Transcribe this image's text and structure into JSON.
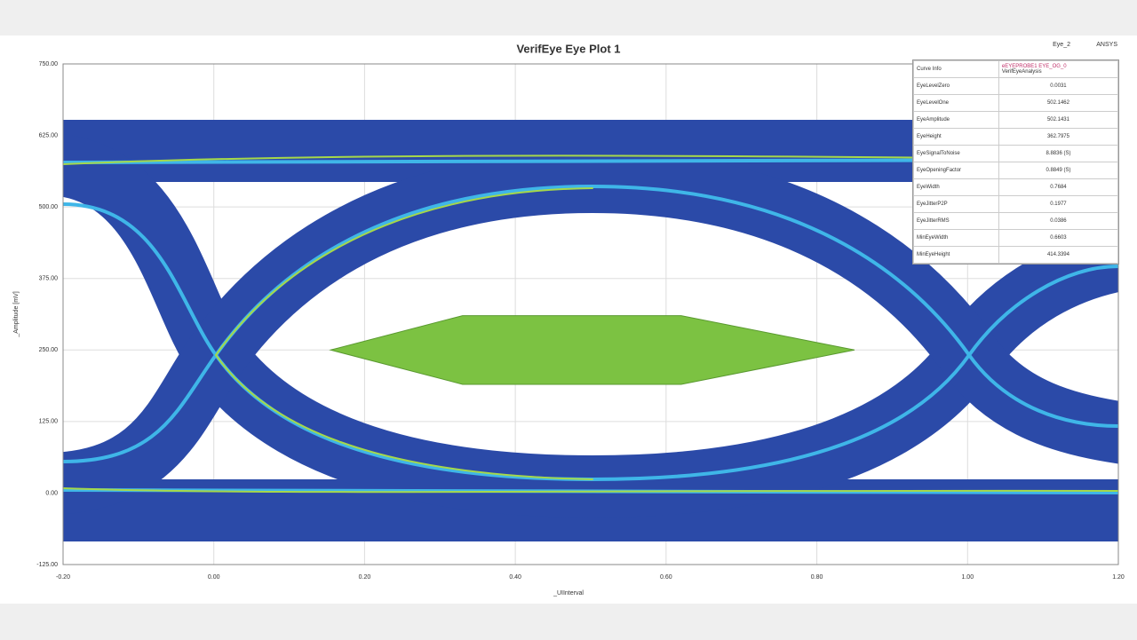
{
  "chart_data": {
    "type": "eye",
    "title": "VerifEye Eye Plot 1",
    "xlabel": "_UIInterval",
    "ylabel": "_Amplitude [mV]",
    "xlim": [
      -0.2,
      1.2
    ],
    "ylim": [
      -125,
      750
    ],
    "xticks": [
      {
        "value": -0.2,
        "label": "-0.20"
      },
      {
        "value": 0,
        "label": "0.00"
      },
      {
        "value": 0.2,
        "label": "0.20"
      },
      {
        "value": 0.4,
        "label": "0.40"
      },
      {
        "value": 0.6,
        "label": "0.60"
      },
      {
        "value": 0.8,
        "label": "0.80"
      },
      {
        "value": 1,
        "label": "1.00"
      },
      {
        "value": 1.2,
        "label": "1.20"
      }
    ],
    "yticks": [
      {
        "value": -125,
        "label": "-125.00"
      },
      {
        "value": 0,
        "label": "0.00"
      },
      {
        "value": 125,
        "label": "125.00"
      },
      {
        "value": 250,
        "label": "250.00"
      },
      {
        "value": 375,
        "label": "375.00"
      },
      {
        "value": 500,
        "label": "500.00"
      },
      {
        "value": 625,
        "label": "625.00"
      },
      {
        "value": 750,
        "label": "750.00"
      }
    ],
    "grid": true,
    "mask": {
      "x": [
        0.155,
        0.33,
        0.62,
        0.85,
        0.62,
        0.33
      ],
      "y": [
        250,
        310,
        310,
        250,
        190,
        190
      ],
      "color": "#7cc242"
    }
  },
  "header": {
    "tag": "Eye_2",
    "app": "ANSYS"
  },
  "legend_table": {
    "curve_label": "Curve Info",
    "curve_name": "eEYEPROBE1 EYE_OG_0",
    "curve_sub": "VerifEyeAnalysis",
    "rows": [
      [
        "EyeLevelZero",
        "0.0031"
      ],
      [
        "EyeLevelOne",
        "502.1462"
      ],
      [
        "EyeAmplitude",
        "502.1431"
      ],
      [
        "EyeHeight",
        "362.7975"
      ],
      [
        "EyeSignalToNoise",
        "8.8836 (S)"
      ],
      [
        "EyeOpeningFactor",
        "0.8849 (S)"
      ],
      [
        "EyeWidth",
        "0.7684"
      ],
      [
        "EyeJitterP2P",
        "0.1977"
      ],
      [
        "EyeJitterRMS",
        "0.0386"
      ],
      [
        "MinEyeWidth",
        "0.6603"
      ],
      [
        "MinEyeHeight",
        "414.3394"
      ]
    ]
  }
}
